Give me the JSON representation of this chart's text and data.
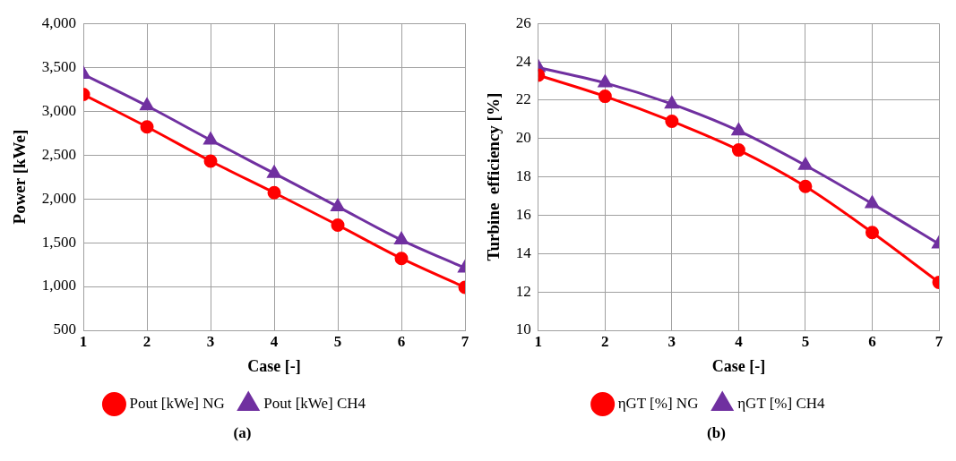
{
  "chart_data": [
    {
      "type": "line",
      "xlabel": "Case [-]",
      "ylabel": "Power [kWe]",
      "x": [
        1,
        2,
        3,
        4,
        5,
        6,
        7
      ],
      "xlim": [
        1,
        7
      ],
      "xticks": [
        1,
        2,
        3,
        4,
        5,
        6,
        7
      ],
      "ylim": [
        500,
        4000
      ],
      "yticks": [
        500,
        {
          "value": 1000,
          "label": "1,000"
        },
        {
          "value": 1500,
          "label": "1,500"
        },
        {
          "value": 2000,
          "label": "2,000"
        },
        {
          "value": 2500,
          "label": "2,500"
        },
        {
          "value": 3000,
          "label": "3,000"
        },
        {
          "value": 3500,
          "label": "3,500"
        },
        {
          "value": 4000,
          "label": "4,000"
        }
      ],
      "series": [
        {
          "name": "Pout [kWe] NG",
          "color": "#ff0000",
          "marker": "circle",
          "values": [
            3190,
            2820,
            2430,
            2070,
            1700,
            1320,
            990
          ]
        },
        {
          "name": "Pout [kWe] CH4",
          "color": "#7030a0",
          "marker": "triangle",
          "values": [
            3420,
            3060,
            2670,
            2290,
            1910,
            1530,
            1210
          ]
        }
      ],
      "grid": true,
      "legend": "bottom",
      "annotations": [
        "(a)"
      ]
    },
    {
      "type": "line",
      "xlabel": "Case [-]",
      "ylabel": "Turbine  efficiency [%]",
      "x": [
        1,
        2,
        3,
        4,
        5,
        6,
        7
      ],
      "xlim": [
        1,
        7
      ],
      "xticks": [
        1,
        2,
        3,
        4,
        5,
        6,
        7
      ],
      "ylim": [
        10,
        26
      ],
      "yticks": [
        10,
        12,
        14,
        16,
        18,
        20,
        22,
        24,
        26
      ],
      "series": [
        {
          "name": "ηGT [%] NG",
          "color": "#ff0000",
          "marker": "circle",
          "values": [
            23.3,
            22.2,
            20.9,
            19.4,
            17.5,
            15.1,
            12.5
          ]
        },
        {
          "name": "ηGT [%] CH4",
          "color": "#7030a0",
          "marker": "triangle",
          "values": [
            23.7,
            22.9,
            21.8,
            20.4,
            18.6,
            16.6,
            14.5
          ]
        }
      ],
      "grid": true,
      "legend": "bottom",
      "annotations": [
        "(b)"
      ]
    }
  ]
}
